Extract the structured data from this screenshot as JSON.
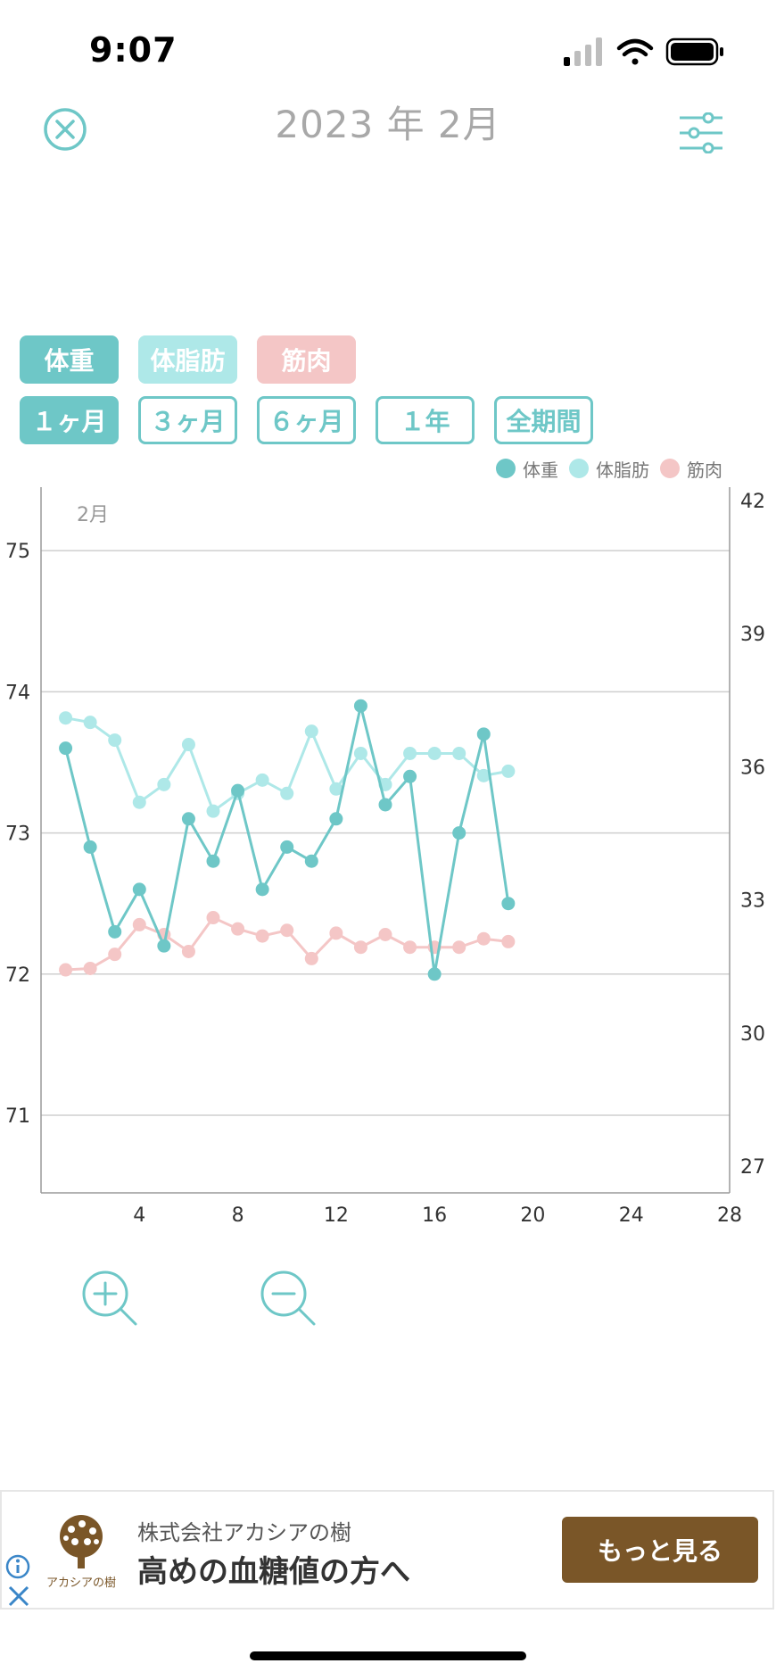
{
  "status_bar": {
    "time": "9:07"
  },
  "header": {
    "title": "2023 年 2月"
  },
  "data_type_tabs": [
    {
      "label": "体重",
      "color": "#6ec7c7",
      "active": true
    },
    {
      "label": "体脂肪",
      "color": "#aee8e8",
      "active": false
    },
    {
      "label": "筋肉",
      "color": "#f4c6c6",
      "active": false
    }
  ],
  "period_tabs": [
    {
      "label": "１ヶ月",
      "active": true
    },
    {
      "label": "３ヶ月",
      "active": false
    },
    {
      "label": "６ヶ月",
      "active": false
    },
    {
      "label": "１年",
      "active": false
    },
    {
      "label": "全期間",
      "active": false
    }
  ],
  "legend": [
    {
      "label": "体重",
      "color": "#6ec7c7"
    },
    {
      "label": "体脂肪",
      "color": "#aee8e8"
    },
    {
      "label": "筋肉",
      "color": "#f4c6c6"
    }
  ],
  "chart_data": {
    "type": "line",
    "month_label": "2月",
    "x_ticks": [
      4,
      8,
      12,
      16,
      20,
      24,
      28
    ],
    "xlim": [
      0,
      28
    ],
    "y_left": {
      "ticks": [
        71,
        72,
        73,
        74,
        75
      ],
      "lim": [
        70.45,
        75.45
      ]
    },
    "y_right": {
      "ticks": [
        27,
        30,
        33,
        36,
        39,
        42
      ],
      "lim": [
        26.4,
        42.3
      ]
    },
    "grid": true,
    "legend_position": "top-right",
    "series": [
      {
        "name": "体重",
        "axis": "left",
        "color": "#6ec7c7",
        "x": [
          1,
          2,
          3,
          4,
          5,
          6,
          7,
          8,
          9,
          10,
          11,
          12,
          13,
          14,
          15,
          16,
          17,
          18,
          19
        ],
        "values": [
          73.6,
          72.9,
          72.3,
          72.6,
          72.2,
          73.1,
          72.8,
          73.3,
          72.6,
          72.9,
          72.8,
          73.1,
          73.9,
          73.2,
          73.4,
          72.0,
          73.0,
          73.7,
          72.5
        ]
      },
      {
        "name": "体脂肪",
        "axis": "right",
        "color": "#aee8e8",
        "x": [
          1,
          2,
          3,
          4,
          5,
          6,
          7,
          8,
          9,
          10,
          11,
          12,
          13,
          14,
          15,
          16,
          17,
          18,
          19
        ],
        "values": [
          37.1,
          37.0,
          36.6,
          35.2,
          35.6,
          36.5,
          35.0,
          35.4,
          35.7,
          35.4,
          36.8,
          35.5,
          36.3,
          35.6,
          36.3,
          36.3,
          36.3,
          35.8,
          35.9
        ]
      },
      {
        "name": "筋肉",
        "axis": "left",
        "color": "#f4c6c6",
        "x": [
          1,
          2,
          3,
          4,
          5,
          6,
          7,
          8,
          9,
          10,
          11,
          12,
          13,
          14,
          15,
          16,
          17,
          18,
          19
        ],
        "values": [
          72.03,
          72.04,
          72.14,
          72.35,
          72.28,
          72.16,
          72.4,
          72.32,
          72.27,
          72.31,
          72.11,
          72.29,
          72.19,
          72.28,
          72.19,
          72.19,
          72.19,
          72.25,
          72.23
        ]
      }
    ]
  },
  "ad": {
    "logo_text": "アカシアの樹",
    "sponsor": "株式会社アカシアの樹",
    "headline": "高めの血糖値の方へ",
    "cta": "もっと見る"
  }
}
